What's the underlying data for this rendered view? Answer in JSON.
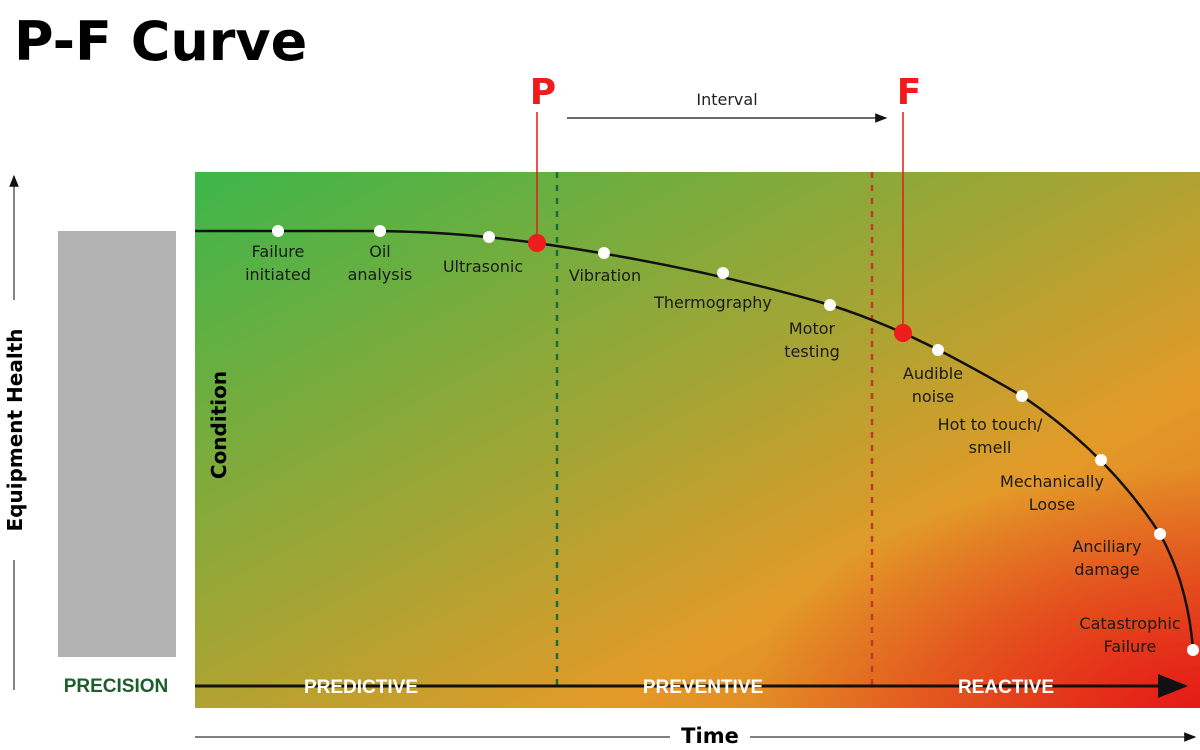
{
  "title": "P-F Curve",
  "p_label": "P",
  "f_label": "F",
  "interval_label": "Interval",
  "y_axis_label": "Equipment Health",
  "x_axis_label": "Time",
  "condition_label": "Condition",
  "precision_label": "PRECISION",
  "zones": [
    "PREDICTIVE",
    "PREVENTIVE",
    "REACTIVE"
  ],
  "points": [
    {
      "lines": [
        "Failure",
        "initiated"
      ]
    },
    {
      "lines": [
        "Oil",
        "analysis"
      ]
    },
    {
      "lines": [
        "Ultrasonic"
      ]
    },
    {
      "lines": [
        "Vibration"
      ]
    },
    {
      "lines": [
        "Thermography"
      ]
    },
    {
      "lines": [
        "Motor",
        "testing"
      ]
    },
    {
      "lines": [
        "Audible",
        "noise"
      ]
    },
    {
      "lines": [
        "Hot to touch/",
        "smell"
      ]
    },
    {
      "lines": [
        "Mechanically",
        "Loose"
      ]
    },
    {
      "lines": [
        "Anciliary",
        "damage"
      ]
    },
    {
      "lines": [
        "Catastrophic",
        "Failure"
      ]
    }
  ],
  "colors": {
    "green": "#3cb64a",
    "orange": "#e39a28",
    "red": "#e41a17",
    "marker": "#ee1c1c",
    "precision": "#1d5e2a",
    "bar": "#b3b3b3"
  }
}
